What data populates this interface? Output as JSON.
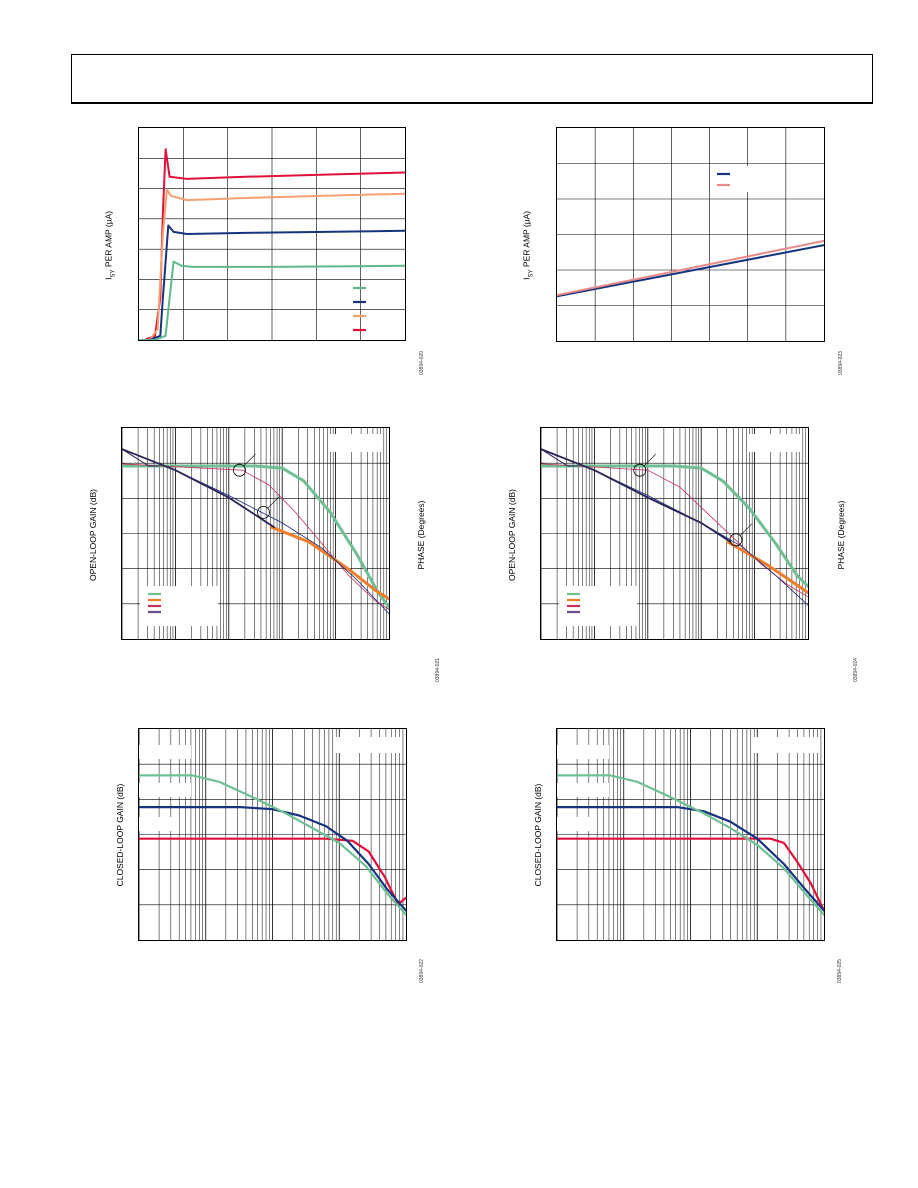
{
  "figure_ids": [
    "03894-020",
    "03894-023",
    "03894-021",
    "03894-024",
    "03894-022",
    "03894-025"
  ],
  "chart_data": [
    {
      "id": "fig1",
      "type": "line",
      "ylabel_prefix": "I",
      "ylabel_sub": "SY",
      "ylabel_suffix": " PER AMP (µA)",
      "grid": true,
      "x_divisions": 6,
      "y_divisions": 7,
      "series": [
        {
          "color": "#e0103a",
          "points": [
            [
              0.0,
              0.0
            ],
            [
              0.02,
              0.0
            ],
            [
              0.06,
              0.02
            ],
            [
              0.08,
              0.2
            ],
            [
              0.09,
              0.6
            ],
            [
              0.1,
              0.9
            ],
            [
              0.115,
              0.77
            ],
            [
              0.18,
              0.76
            ],
            [
              0.4,
              0.77
            ],
            [
              0.7,
              0.78
            ],
            [
              1.0,
              0.79
            ]
          ]
        },
        {
          "color": "#f4a070",
          "points": [
            [
              0.0,
              0.0
            ],
            [
              0.04,
              0.0
            ],
            [
              0.07,
              0.05
            ],
            [
              0.09,
              0.5
            ],
            [
              0.105,
              0.71
            ],
            [
              0.12,
              0.68
            ],
            [
              0.18,
              0.66
            ],
            [
              0.4,
              0.67
            ],
            [
              0.7,
              0.68
            ],
            [
              1.0,
              0.69
            ]
          ]
        },
        {
          "color": "#16347e",
          "points": [
            [
              0.0,
              0.0
            ],
            [
              0.04,
              0.0
            ],
            [
              0.08,
              0.02
            ],
            [
              0.09,
              0.2
            ],
            [
              0.11,
              0.54
            ],
            [
              0.13,
              0.51
            ],
            [
              0.18,
              0.5
            ],
            [
              0.4,
              0.505
            ],
            [
              0.7,
              0.51
            ],
            [
              1.0,
              0.515
            ]
          ]
        },
        {
          "color": "#5fb88a",
          "points": [
            [
              0.0,
              0.0
            ],
            [
              0.06,
              0.0
            ],
            [
              0.1,
              0.02
            ],
            [
              0.115,
              0.2
            ],
            [
              0.13,
              0.37
            ],
            [
              0.16,
              0.35
            ],
            [
              0.2,
              0.345
            ],
            [
              0.5,
              0.345
            ],
            [
              1.0,
              0.35
            ]
          ]
        }
      ],
      "legend": [
        {
          "color": "#5fb88a"
        },
        {
          "color": "#16347e"
        },
        {
          "color": "#f4a070"
        },
        {
          "color": "#e0103a"
        }
      ]
    },
    {
      "id": "fig2",
      "type": "line",
      "ylabel_prefix": "I",
      "ylabel_sub": "SY",
      "ylabel_suffix": " PER AMP (µA)",
      "grid": true,
      "x_divisions": 7,
      "y_divisions": 6,
      "series": [
        {
          "color": "#16347e",
          "points": [
            [
              0.0,
              0.21
            ],
            [
              1.0,
              0.45
            ]
          ]
        },
        {
          "color": "#e88a8a",
          "points": [
            [
              0.0,
              0.215
            ],
            [
              1.0,
              0.47
            ]
          ]
        }
      ],
      "legend": [
        {
          "color": "#16347e"
        },
        {
          "color": "#e88a8a"
        }
      ]
    },
    {
      "id": "fig3",
      "type": "line",
      "ylabel": "OPEN-LOOP GAIN (dB)",
      "y2label": "PHASE (Degrees)",
      "log_x": true,
      "x_decades": 5,
      "y_divisions": 6,
      "series": [
        {
          "color": "#6fbf94",
          "width": 3,
          "points": [
            [
              0.0,
              0.82
            ],
            [
              0.5,
              0.82
            ],
            [
              0.6,
              0.81
            ],
            [
              0.68,
              0.75
            ],
            [
              0.78,
              0.6
            ],
            [
              0.88,
              0.4
            ],
            [
              0.96,
              0.22
            ],
            [
              1.0,
              0.15
            ]
          ]
        },
        {
          "color": "#c4325a",
          "width": 0.8,
          "points": [
            [
              0.0,
              0.83
            ],
            [
              0.45,
              0.8
            ],
            [
              0.55,
              0.73
            ],
            [
              0.65,
              0.6
            ],
            [
              0.75,
              0.45
            ],
            [
              0.85,
              0.3
            ],
            [
              0.95,
              0.18
            ],
            [
              1.0,
              0.14
            ]
          ]
        },
        {
          "color": "#f07e2a",
          "width": 3,
          "points": [
            [
              0.56,
              0.53
            ],
            [
              0.7,
              0.46
            ],
            [
              0.85,
              0.33
            ],
            [
              0.95,
              0.23
            ],
            [
              1.0,
              0.19
            ]
          ]
        },
        {
          "color": "#1b2a80",
          "width": 0.8,
          "points": [
            [
              0.0,
              0.9
            ],
            [
              0.2,
              0.8
            ],
            [
              0.4,
              0.68
            ],
            [
              0.6,
              0.55
            ],
            [
              0.75,
              0.43
            ],
            [
              0.88,
              0.28
            ],
            [
              1.0,
              0.12
            ]
          ]
        },
        {
          "color": "#2a2455",
          "width": 1.8,
          "points": [
            [
              0.0,
              0.9
            ],
            [
              0.2,
              0.8
            ],
            [
              0.4,
              0.67
            ],
            [
              0.57,
              0.53
            ]
          ]
        },
        {
          "color": "#2a2455",
          "width": 1.0,
          "points": [
            [
              0.0,
              0.9
            ],
            [
              0.1,
              0.82
            ],
            [
              0.14,
              0.82
            ]
          ]
        }
      ],
      "legend": [
        {
          "color": "#6fbf94"
        },
        {
          "color": "#f07e2a"
        },
        {
          "color": "#c4325a"
        },
        {
          "color": "#6a4e8c"
        }
      ],
      "markers": [
        [
          0.44,
          0.8
        ],
        [
          0.53,
          0.6
        ]
      ]
    },
    {
      "id": "fig4",
      "type": "line",
      "ylabel": "OPEN-LOOP GAIN (dB)",
      "y2label": "PHASE (Degrees)",
      "log_x": true,
      "x_decades": 5,
      "y_divisions": 6,
      "series": [
        {
          "color": "#6fbf94",
          "width": 3,
          "points": [
            [
              0.0,
              0.82
            ],
            [
              0.5,
              0.82
            ],
            [
              0.6,
              0.81
            ],
            [
              0.68,
              0.75
            ],
            [
              0.78,
              0.62
            ],
            [
              0.88,
              0.45
            ],
            [
              0.96,
              0.3
            ],
            [
              1.0,
              0.25
            ]
          ]
        },
        {
          "color": "#c4325a",
          "width": 0.8,
          "points": [
            [
              0.0,
              0.83
            ],
            [
              0.4,
              0.8
            ],
            [
              0.52,
              0.72
            ],
            [
              0.62,
              0.6
            ],
            [
              0.72,
              0.48
            ],
            [
              0.82,
              0.36
            ],
            [
              0.92,
              0.26
            ],
            [
              1.0,
              0.2
            ]
          ]
        },
        {
          "color": "#f07e2a",
          "width": 3,
          "points": [
            [
              0.7,
              0.46
            ],
            [
              0.85,
              0.35
            ],
            [
              1.0,
              0.22
            ]
          ]
        },
        {
          "color": "#1b2a80",
          "width": 0.8,
          "points": [
            [
              0.0,
              0.9
            ],
            [
              0.2,
              0.8
            ],
            [
              0.4,
              0.68
            ],
            [
              0.6,
              0.55
            ],
            [
              0.75,
              0.44
            ],
            [
              0.88,
              0.3
            ],
            [
              1.0,
              0.16
            ]
          ]
        },
        {
          "color": "#2a2455",
          "width": 1.8,
          "points": [
            [
              0.0,
              0.9
            ],
            [
              0.2,
              0.8
            ],
            [
              0.4,
              0.67
            ],
            [
              0.6,
              0.55
            ],
            [
              0.71,
              0.46
            ]
          ]
        },
        {
          "color": "#2a2455",
          "width": 1.0,
          "points": [
            [
              0.0,
              0.9
            ],
            [
              0.1,
              0.82
            ],
            [
              0.14,
              0.82
            ]
          ]
        }
      ],
      "legend": [
        {
          "color": "#6fbf94"
        },
        {
          "color": "#f07e2a"
        },
        {
          "color": "#c4325a"
        },
        {
          "color": "#6a4e8c"
        }
      ],
      "markers": [
        [
          0.37,
          0.8
        ],
        [
          0.73,
          0.47
        ]
      ]
    },
    {
      "id": "fig5",
      "type": "line",
      "ylabel": "CLOSED-LOOP GAIN (dB)",
      "log_x": true,
      "x_decades": 4,
      "y_divisions": 6,
      "series": [
        {
          "color": "#e0103a",
          "width": 2.2,
          "points": [
            [
              0.0,
              0.48
            ],
            [
              0.7,
              0.48
            ],
            [
              0.8,
              0.47
            ],
            [
              0.86,
              0.42
            ],
            [
              0.92,
              0.3
            ],
            [
              0.97,
              0.17
            ],
            [
              1.0,
              0.2
            ]
          ]
        },
        {
          "color": "#16347e",
          "width": 2.2,
          "points": [
            [
              0.0,
              0.63
            ],
            [
              0.38,
              0.63
            ],
            [
              0.5,
              0.62
            ],
            [
              0.6,
              0.59
            ],
            [
              0.7,
              0.54
            ],
            [
              0.78,
              0.47
            ],
            [
              0.86,
              0.36
            ],
            [
              0.93,
              0.24
            ],
            [
              1.0,
              0.14
            ]
          ]
        },
        {
          "color": "#6fbf94",
          "width": 2.2,
          "points": [
            [
              0.0,
              0.78
            ],
            [
              0.2,
              0.78
            ],
            [
              0.3,
              0.75
            ],
            [
              0.42,
              0.68
            ],
            [
              0.55,
              0.6
            ],
            [
              0.65,
              0.53
            ],
            [
              0.75,
              0.46
            ],
            [
              0.85,
              0.35
            ],
            [
              0.93,
              0.22
            ],
            [
              1.0,
              0.12
            ]
          ]
        }
      ],
      "label_boxes": 3
    },
    {
      "id": "fig6",
      "type": "line",
      "ylabel": "CLOSED-LOOP GAIN (dB)",
      "log_x": true,
      "x_decades": 4,
      "y_divisions": 6,
      "series": [
        {
          "color": "#e0103a",
          "width": 2.2,
          "points": [
            [
              0.0,
              0.48
            ],
            [
              0.63,
              0.48
            ],
            [
              0.8,
              0.48
            ],
            [
              0.85,
              0.46
            ],
            [
              0.9,
              0.37
            ],
            [
              0.95,
              0.27
            ],
            [
              1.0,
              0.14
            ]
          ]
        },
        {
          "color": "#16347e",
          "width": 2.2,
          "points": [
            [
              0.0,
              0.63
            ],
            [
              0.45,
              0.63
            ],
            [
              0.55,
              0.61
            ],
            [
              0.65,
              0.56
            ],
            [
              0.75,
              0.48
            ],
            [
              0.85,
              0.36
            ],
            [
              0.93,
              0.24
            ],
            [
              1.0,
              0.14
            ]
          ]
        },
        {
          "color": "#6fbf94",
          "width": 2.2,
          "points": [
            [
              0.0,
              0.78
            ],
            [
              0.2,
              0.78
            ],
            [
              0.3,
              0.75
            ],
            [
              0.42,
              0.68
            ],
            [
              0.55,
              0.6
            ],
            [
              0.65,
              0.53
            ],
            [
              0.75,
              0.45
            ],
            [
              0.85,
              0.34
            ],
            [
              0.93,
              0.22
            ],
            [
              1.0,
              0.12
            ]
          ]
        }
      ],
      "label_boxes": 3
    }
  ]
}
